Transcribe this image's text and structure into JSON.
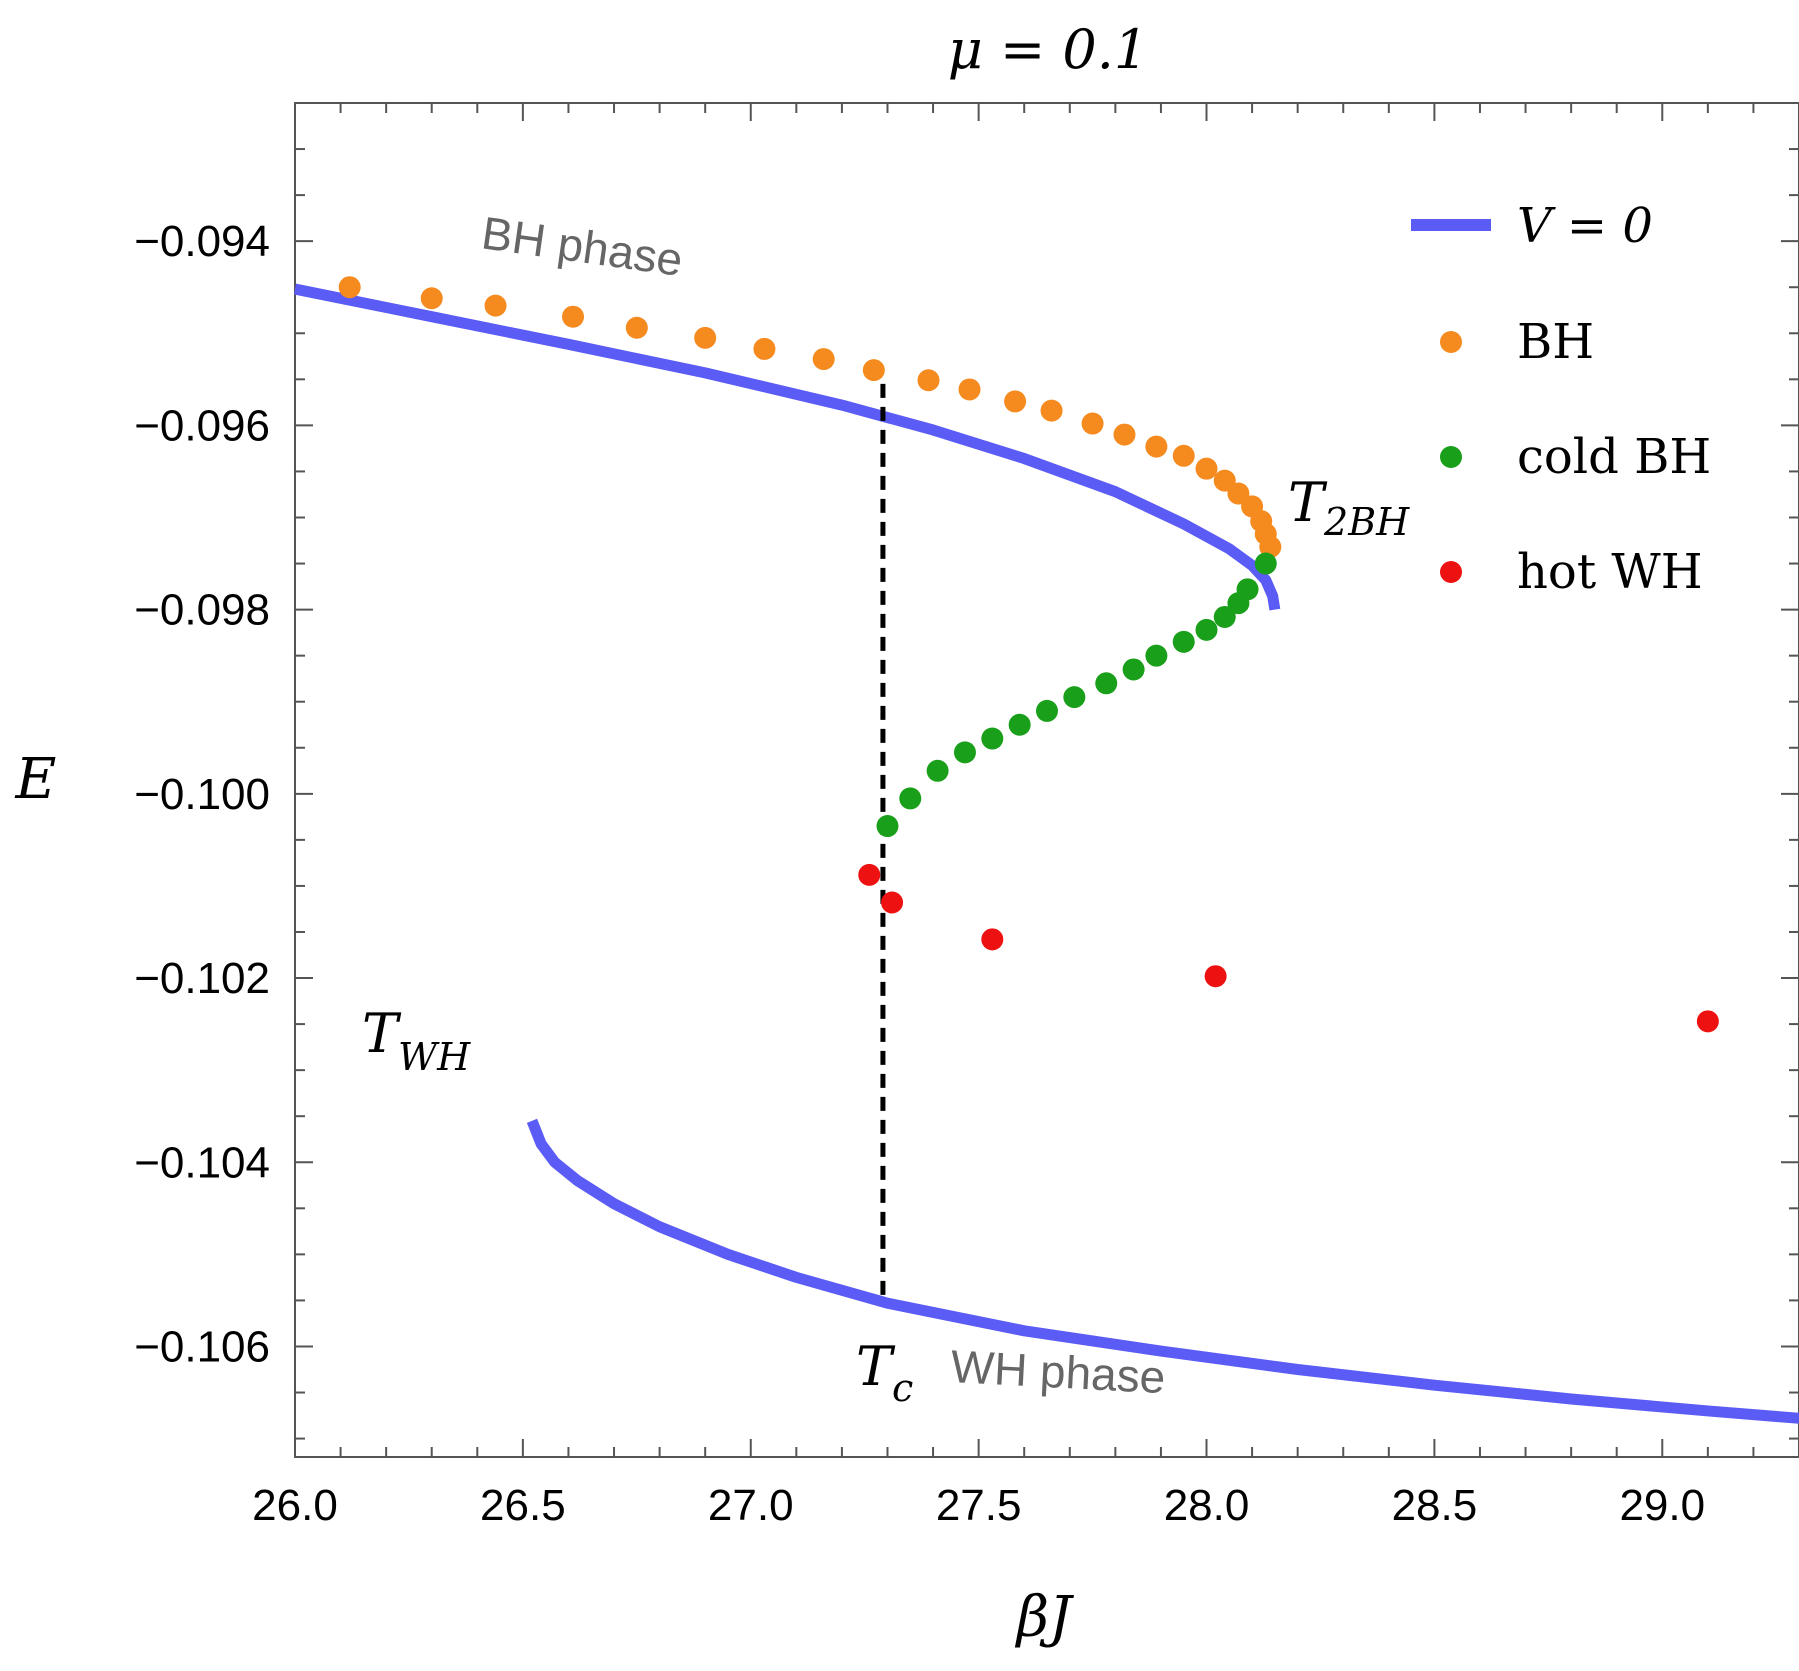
{
  "chart_data": {
    "type": "line+scatter",
    "title": "μ = 0.1",
    "xlabel": "βJ",
    "ylabel": "E",
    "xlim": [
      26.0,
      29.3
    ],
    "ylim": [
      -0.1072,
      -0.0925
    ],
    "x_ticks": [
      26.0,
      26.5,
      27.0,
      27.5,
      28.0,
      28.5,
      29.0
    ],
    "x_tick_labels": [
      "26.0",
      "26.5",
      "27.0",
      "27.5",
      "28.0",
      "28.5",
      "29.0"
    ],
    "y_ticks": [
      -0.094,
      -0.096,
      -0.098,
      -0.1,
      -0.102,
      -0.104,
      -0.106
    ],
    "y_tick_labels": [
      "−0.094",
      "−0.096",
      "−0.098",
      "−0.100",
      "−0.102",
      "−0.104",
      "−0.106"
    ],
    "colors": {
      "line": "#5b5bf5",
      "bh": "#f58a1f",
      "cold_bh": "#1a9f1a",
      "hot_wh": "#ee1111",
      "dashed": "#000000",
      "region_text": "#666666"
    },
    "series": [
      {
        "name": "V = 0 (BH branch)",
        "kind": "line",
        "x": [
          26.0,
          26.3,
          26.6,
          26.9,
          27.2,
          27.4,
          27.6,
          27.8,
          27.95,
          28.05,
          28.1,
          28.13,
          28.145,
          28.15
        ],
        "y": [
          -0.09452,
          -0.09482,
          -0.09512,
          -0.09543,
          -0.09578,
          -0.09605,
          -0.09636,
          -0.09672,
          -0.09707,
          -0.09734,
          -0.09752,
          -0.09768,
          -0.09785,
          -0.098
        ]
      },
      {
        "name": "V = 0 (WH branch)",
        "kind": "line",
        "x": [
          26.52,
          26.54,
          26.57,
          26.62,
          26.7,
          26.8,
          26.95,
          27.1,
          27.3,
          27.6,
          27.9,
          28.2,
          28.5,
          28.8,
          29.1,
          29.3
        ],
        "y": [
          -0.10355,
          -0.1038,
          -0.104,
          -0.1042,
          -0.10445,
          -0.1047,
          -0.105,
          -0.10525,
          -0.10553,
          -0.10583,
          -0.10605,
          -0.10625,
          -0.10642,
          -0.10657,
          -0.1067,
          -0.10678
        ]
      },
      {
        "name": "BH",
        "kind": "scatter",
        "x": [
          26.12,
          26.3,
          26.44,
          26.61,
          26.75,
          26.9,
          27.03,
          27.16,
          27.27,
          27.39,
          27.48,
          27.58,
          27.66,
          27.75,
          27.82,
          27.89,
          27.95,
          28.0,
          28.04,
          28.07,
          28.1,
          28.12,
          28.13,
          28.14
        ],
        "y": [
          -0.0945,
          -0.09462,
          -0.0947,
          -0.09482,
          -0.09494,
          -0.09505,
          -0.09517,
          -0.09528,
          -0.0954,
          -0.09551,
          -0.09561,
          -0.09574,
          -0.09584,
          -0.09598,
          -0.0961,
          -0.09623,
          -0.09633,
          -0.09647,
          -0.0966,
          -0.09674,
          -0.09688,
          -0.09704,
          -0.09718,
          -0.09732
        ]
      },
      {
        "name": "cold BH",
        "kind": "scatter",
        "x": [
          28.13,
          28.09,
          28.07,
          28.04,
          28.0,
          27.95,
          27.89,
          27.84,
          27.78,
          27.71,
          27.65,
          27.59,
          27.53,
          27.47,
          27.41,
          27.35,
          27.3
        ],
        "y": [
          -0.0975,
          -0.09778,
          -0.09793,
          -0.09808,
          -0.09822,
          -0.09835,
          -0.0985,
          -0.09865,
          -0.0988,
          -0.09895,
          -0.0991,
          -0.09925,
          -0.0994,
          -0.09955,
          -0.09975,
          -0.10005,
          -0.10035
        ]
      },
      {
        "name": "hot WH",
        "kind": "scatter",
        "x": [
          27.26,
          27.31,
          27.53,
          28.02,
          29.1
        ],
        "y": [
          -0.10088,
          -0.10118,
          -0.10158,
          -0.10198,
          -0.10247
        ]
      },
      {
        "name": "T_c",
        "kind": "dashed",
        "x": [
          27.29,
          27.29
        ],
        "y": [
          -0.09555,
          -0.10545
        ]
      }
    ],
    "legend": {
      "position": "top-right",
      "items": [
        {
          "label": "V = 0",
          "kind": "line",
          "color_key": "line"
        },
        {
          "label": "BH",
          "kind": "dot",
          "color_key": "bh"
        },
        {
          "label": "cold BH",
          "kind": "dot",
          "color_key": "cold_bh"
        },
        {
          "label": "hot WH",
          "kind": "dot",
          "color_key": "hot_wh"
        }
      ]
    },
    "annotations": {
      "bh_phase": "BH phase",
      "wh_phase": "WH phase",
      "t2bh_main": "T",
      "t2bh_sub": "2BH",
      "twh_main": "T",
      "twh_sub": "WH",
      "tc_main": "T",
      "tc_sub": "c"
    }
  }
}
